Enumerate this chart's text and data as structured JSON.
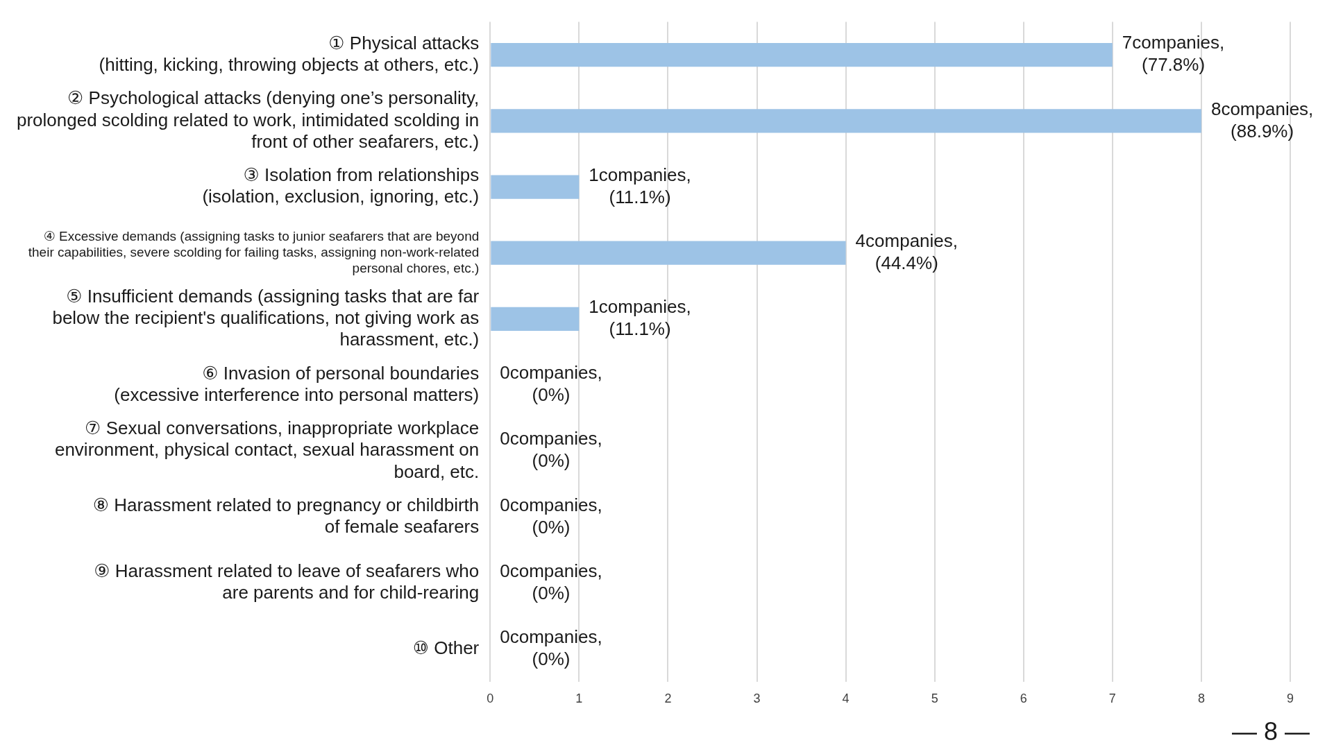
{
  "chart_data": {
    "type": "bar",
    "orientation": "horizontal",
    "categories": [
      "① Physical attacks\n(hitting, kicking, throwing objects at others, etc.)",
      "② Psychological attacks (denying one’s personality,\nprolonged scolding related to work, intimidated scolding in\nfront of other seafarers, etc.)",
      "③ Isolation from relationships\n(isolation, exclusion, ignoring, etc.)",
      "④ Excessive demands (assigning tasks to junior seafarers that are beyond\ntheir capabilities, severe scolding for failing tasks, assigning non-work-related\npersonal chores, etc.)",
      "⑤ Insufficient demands (assigning tasks that are far\nbelow the recipient's qualifications, not giving work as\nharassment, etc.)",
      "⑥ Invasion of personal boundaries\n(excessive interference into personal matters)",
      "⑦ Sexual conversations, inappropriate workplace\nenvironment, physical contact, sexual harassment on\nboard, etc.",
      "⑧ Harassment related to pregnancy or childbirth\nof female seafarers",
      "⑨ Harassment related to leave of seafarers who\nare parents and for child-rearing",
      "⑩ Other"
    ],
    "values": [
      7,
      8,
      1,
      4,
      1,
      0,
      0,
      0,
      0,
      0
    ],
    "value_labels": [
      "7companies,\n(77.8%)",
      "8companies,\n(88.9%)",
      "1companies,\n(11.1%)",
      "4companies,\n(44.4%)",
      "1companies,\n(11.1%)",
      "0companies,\n(0%)",
      "0companies,\n(0%)",
      "0companies,\n(0%)",
      "0companies,\n(0%)",
      "0companies,\n(0%)"
    ],
    "color": "#9dc3e6",
    "xlim": [
      0,
      9
    ],
    "xticks": [
      0,
      1,
      2,
      3,
      4,
      5,
      6,
      7,
      8,
      9
    ],
    "grid": "x",
    "legend": false,
    "annotations": [
      "— 8 —"
    ]
  }
}
